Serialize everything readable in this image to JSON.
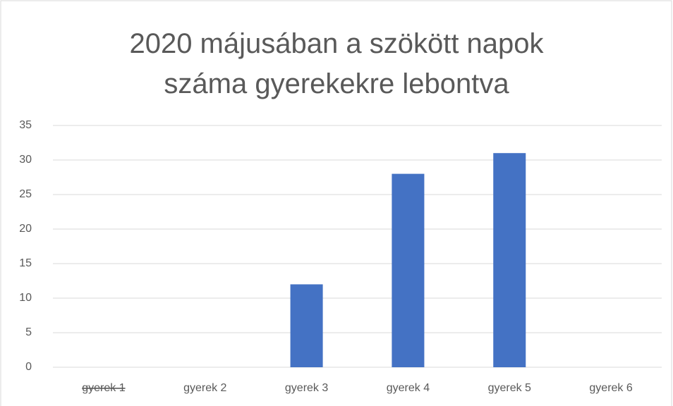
{
  "chart_data": {
    "type": "bar",
    "title": "2020 májusában a szökött napok száma gyerekekre lebontva",
    "categories": [
      "gyerek 1",
      "gyerek 2",
      "gyerek 3",
      "gyerek 4",
      "gyerek 5",
      "gyerek 6"
    ],
    "values": [
      0,
      0,
      12,
      28,
      31,
      0
    ],
    "color": "#4472c4",
    "ylim": [
      0,
      35
    ],
    "yticks": [
      0,
      5,
      10,
      15,
      20,
      25,
      30,
      35
    ],
    "grid": true
  }
}
